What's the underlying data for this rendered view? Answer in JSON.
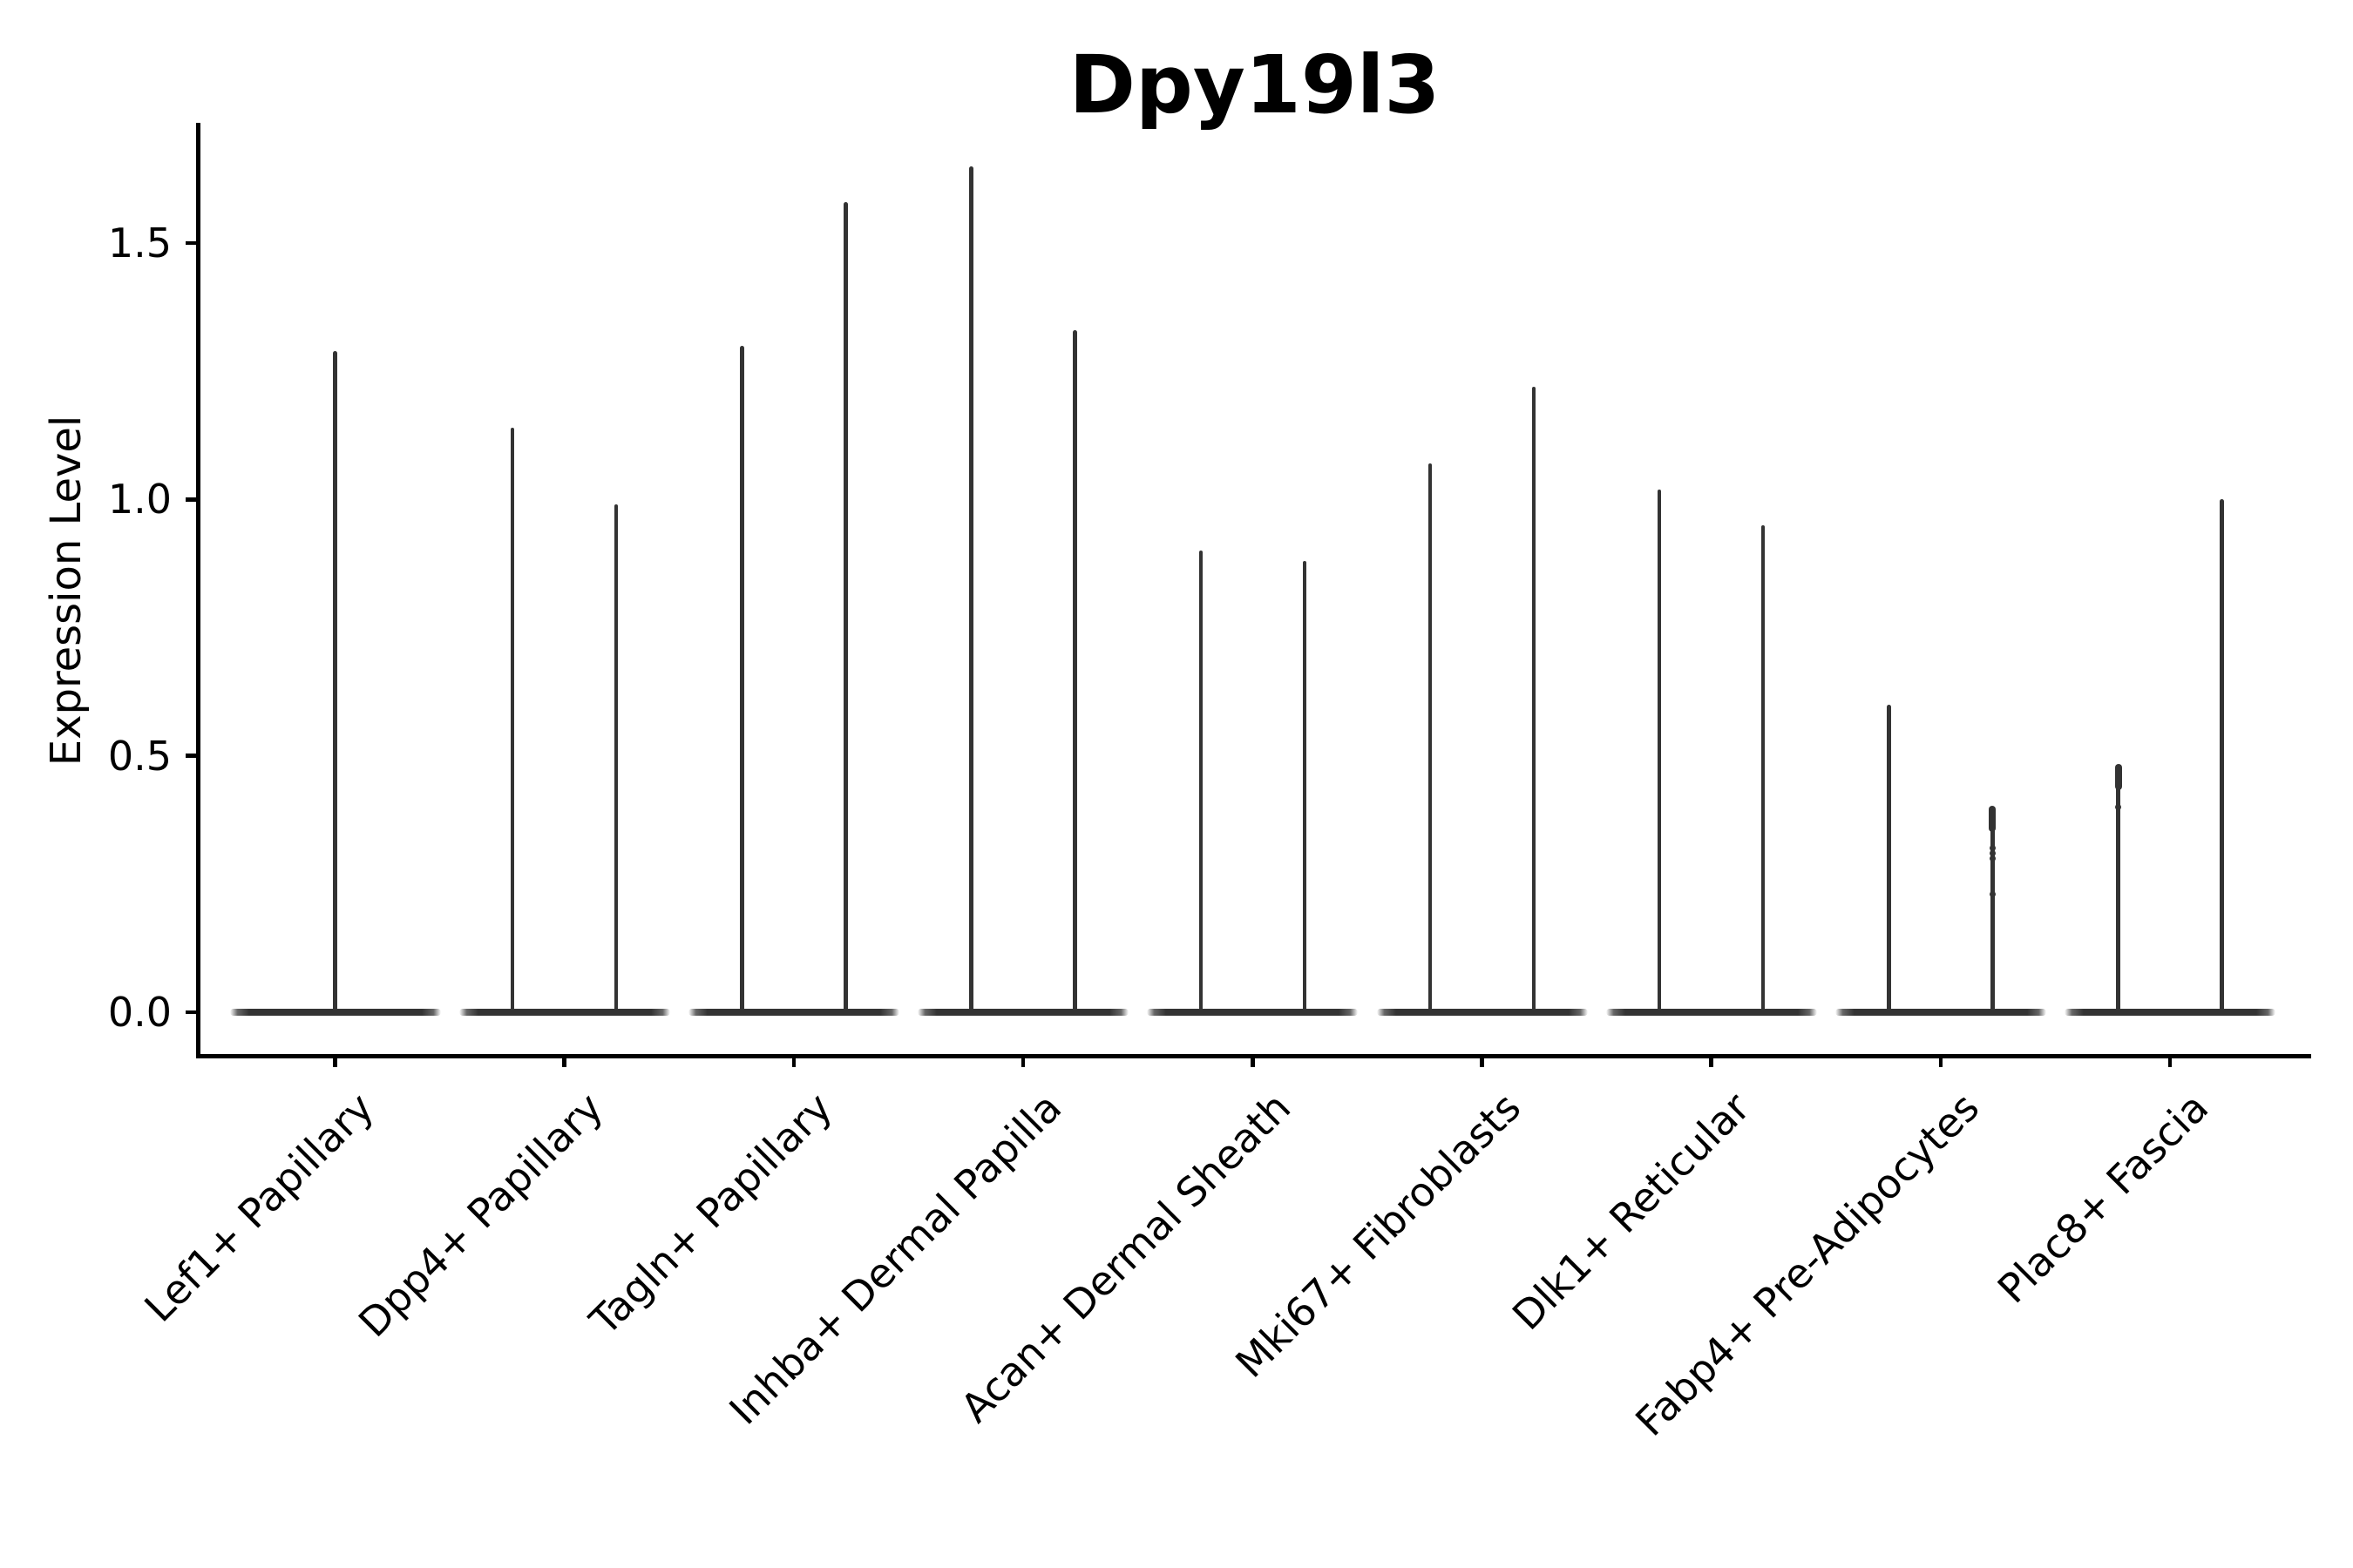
{
  "title": "Dpy19l3",
  "y_axis": {
    "label": "Expression Level",
    "ticks": [
      "0.0",
      "0.5",
      "1.0",
      "1.5"
    ],
    "tick_values": [
      0,
      0.5,
      1.0,
      1.5
    ]
  },
  "colors": {
    "violin": "#333333",
    "axis": "#000000",
    "text": "#000000",
    "background": "#ffffff"
  },
  "chart_data": {
    "type": "violin",
    "title": "Dpy19l3",
    "xlabel": "",
    "ylabel": "Expression Level",
    "ylim": [
      0,
      1.74
    ],
    "yticks": [
      0,
      0.5,
      1.0,
      1.5
    ],
    "grid": false,
    "legend_position": "none",
    "categories": [
      "Lef1+ Papillary",
      "Dpp4+ Papillary",
      "Tagln+ Papillary",
      "Inhba+ Dermal Papilla",
      "Acan+ Dermal Sheath",
      "Mki67+ Fibroblasts",
      "Dlk1+ Reticular",
      "Fabp4+ Pre-Adipocytes",
      "Plac8+ Fascia"
    ],
    "violins": [
      {
        "category": "Lef1+ Papillary",
        "baseline_value": 0,
        "spikes": [
          {
            "pos": "center",
            "max": 1.29
          }
        ]
      },
      {
        "category": "Dpp4+ Papillary",
        "baseline_value": 0,
        "spikes": [
          {
            "pos": "left",
            "max": 1.14
          },
          {
            "pos": "right",
            "max": 0.99
          }
        ]
      },
      {
        "category": "Tagln+ Papillary",
        "baseline_value": 0,
        "spikes": [
          {
            "pos": "left",
            "max": 1.3
          },
          {
            "pos": "right",
            "max": 1.58
          }
        ]
      },
      {
        "category": "Inhba+ Dermal Papilla",
        "baseline_value": 0,
        "spikes": [
          {
            "pos": "left",
            "max": 1.65
          },
          {
            "pos": "right",
            "max": 1.33
          }
        ]
      },
      {
        "category": "Acan+ Dermal Sheath",
        "baseline_value": 0,
        "spikes": [
          {
            "pos": "left",
            "max": 0.9
          },
          {
            "pos": "right",
            "max": 0.88
          }
        ]
      },
      {
        "category": "Mki67+ Fibroblasts",
        "baseline_value": 0,
        "spikes": [
          {
            "pos": "left",
            "max": 1.07
          },
          {
            "pos": "right",
            "max": 1.22
          }
        ]
      },
      {
        "category": "Dlk1+ Reticular",
        "baseline_value": 0,
        "spikes": [
          {
            "pos": "left",
            "max": 1.02
          },
          {
            "pos": "right",
            "max": 0.95
          }
        ]
      },
      {
        "category": "Fabp4+ Pre-Adipocytes",
        "baseline_value": 0,
        "spikes": [
          {
            "pos": "left",
            "max": 0.6
          },
          {
            "pos": "right",
            "max": 0.4,
            "knob": true,
            "dots": [
              0.32,
              0.31,
              0.3,
              0.23
            ]
          }
        ]
      },
      {
        "category": "Plac8+ Fascia",
        "baseline_value": 0,
        "spikes": [
          {
            "pos": "left",
            "max": 0.48,
            "knob": true,
            "dots": [
              0.4
            ]
          },
          {
            "pos": "right",
            "max": 1.0
          }
        ]
      }
    ],
    "description": "Violin plot of Dpy19l3 expression per fibroblast subtype; most cells at 0 (wide flat violin base) with narrow density spikes reaching each group's maximum."
  }
}
